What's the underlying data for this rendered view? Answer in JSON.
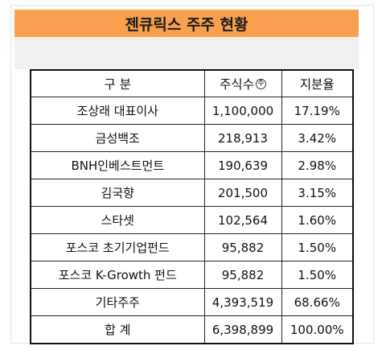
{
  "title": "젠큐릭스 주주 현황",
  "table": {
    "headers": {
      "category": "구 분",
      "shares": "주식수",
      "shares_unit": "주",
      "ratio": "지분율"
    },
    "rows": [
      {
        "name": "조상래 대표이사",
        "shares": "1,100,000",
        "ratio": "17.19%"
      },
      {
        "name": "금성백조",
        "shares": "218,913",
        "ratio": "3.42%"
      },
      {
        "name": "BNH인베스트먼트",
        "shares": "190,639",
        "ratio": "2.98%"
      },
      {
        "name": "김국향",
        "shares": "201,500",
        "ratio": "3.15%"
      },
      {
        "name": "스타셋",
        "shares": "102,564",
        "ratio": "1.60%"
      },
      {
        "name": "포스코 초기기업펀드",
        "shares": "95,882",
        "ratio": "1.50%"
      },
      {
        "name": "포스코 K-Growth 펀드",
        "shares": "95,882",
        "ratio": "1.50%"
      },
      {
        "name": "기타주주",
        "shares": "4,393,519",
        "ratio": "68.66%"
      }
    ],
    "total": {
      "name": "합 계",
      "shares": "6,398,899",
      "ratio": "100.00%"
    }
  },
  "colors": {
    "title_background": "#f9a050",
    "band_background": "#f1f1f1"
  }
}
